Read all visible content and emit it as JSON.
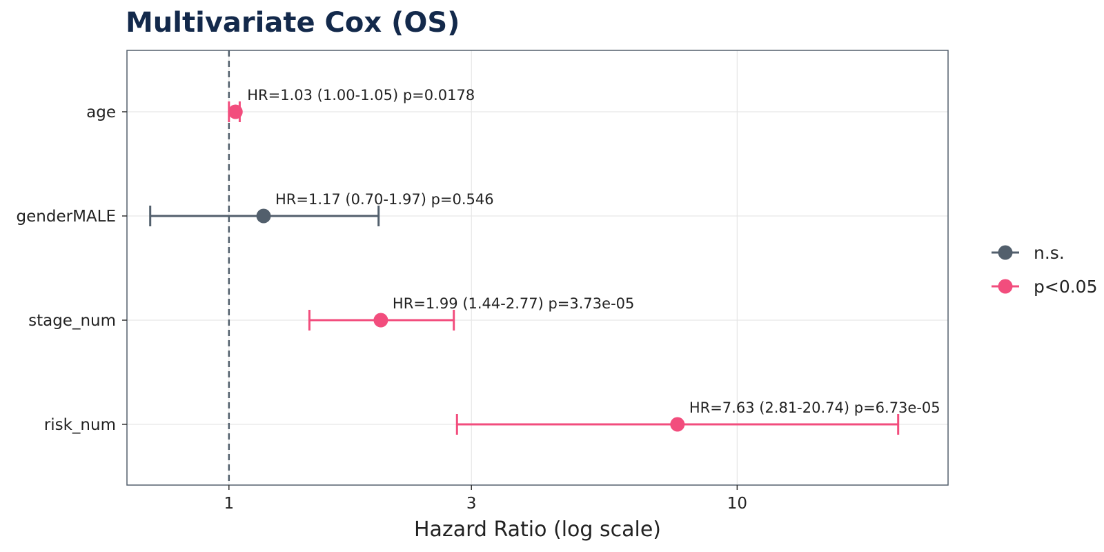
{
  "chart_data": {
    "type": "scatter",
    "title": "Multivariate Cox (OS)",
    "xlabel": "Hazard Ratio (log scale)",
    "ylabel": "",
    "x_scale": "log",
    "xlim": [
      0.63,
      26
    ],
    "x_ticks": [
      1,
      3,
      10
    ],
    "x_tick_labels": [
      "1",
      "3",
      "10"
    ],
    "reference_line": 1,
    "categories": [
      "age",
      "genderMALE",
      "stage_num",
      "risk_num"
    ],
    "points": [
      {
        "label": "age",
        "hr": 1.03,
        "lower": 1.0,
        "upper": 1.05,
        "group": "p<0.05",
        "annotation": "HR=1.03 (1.00-1.05) p=0.0178"
      },
      {
        "label": "genderMALE",
        "hr": 1.17,
        "lower": 0.7,
        "upper": 1.97,
        "group": "n.s.",
        "annotation": "HR=1.17 (0.70-1.97) p=0.546"
      },
      {
        "label": "stage_num",
        "hr": 1.99,
        "lower": 1.44,
        "upper": 2.77,
        "group": "p<0.05",
        "annotation": "HR=1.99 (1.44-2.77) p=3.73e-05"
      },
      {
        "label": "risk_num",
        "hr": 7.63,
        "lower": 2.81,
        "upper": 20.74,
        "group": "p<0.05",
        "annotation": "HR=7.63 (2.81-20.74) p=6.73e-05"
      }
    ],
    "legend": {
      "placement": "right",
      "items": [
        {
          "name": "n.s.",
          "color": "#525f6c"
        },
        {
          "name": "p<0.05",
          "color": "#f24d7d"
        }
      ]
    },
    "grid": true,
    "colors": {
      "title": "#13294b",
      "panel_border": "#525f6c",
      "grid": "#e6e6e6",
      "reference_line": "#525f6c"
    }
  }
}
